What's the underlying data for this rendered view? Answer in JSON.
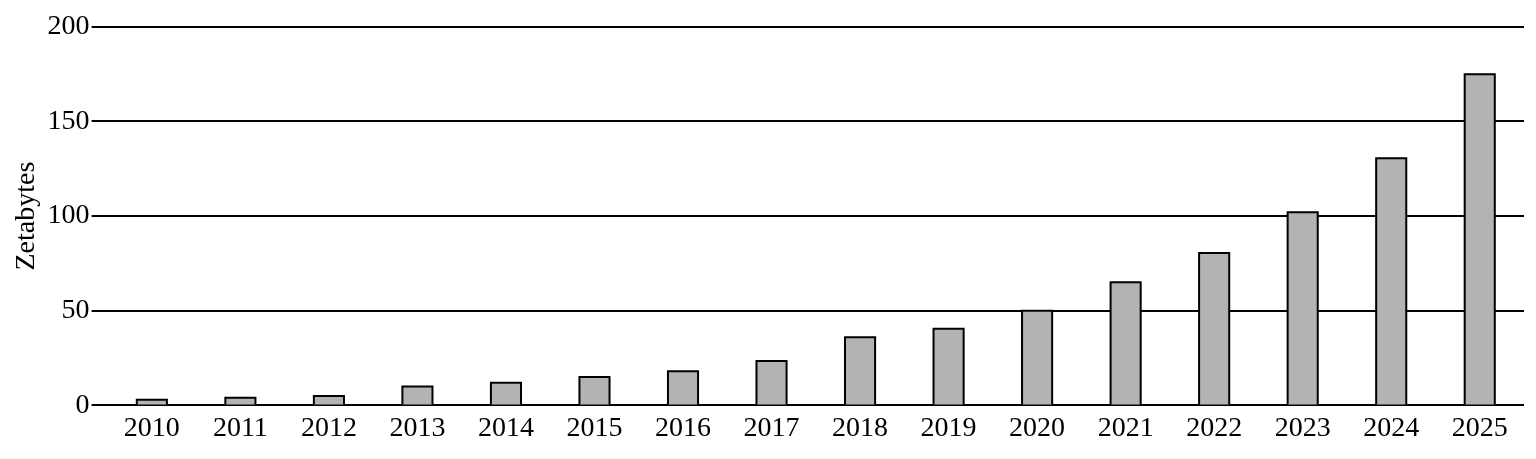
{
  "chart_data": {
    "type": "bar",
    "ylabel": "Zetabytes",
    "categories": [
      "2010",
      "2011",
      "2012",
      "2013",
      "2014",
      "2015",
      "2016",
      "2017",
      "2018",
      "2019",
      "2020",
      "2021",
      "2022",
      "2023",
      "2024",
      "2025"
    ],
    "values": [
      3,
      4,
      5,
      10,
      12,
      15,
      18,
      23.5,
      36,
      40.5,
      50,
      65,
      80.5,
      102,
      130.5,
      175
    ],
    "color": "#b3b3b3",
    "ylim": [
      0,
      200
    ],
    "yticks": [
      0,
      50,
      100,
      150,
      200
    ],
    "grid": "y"
  }
}
